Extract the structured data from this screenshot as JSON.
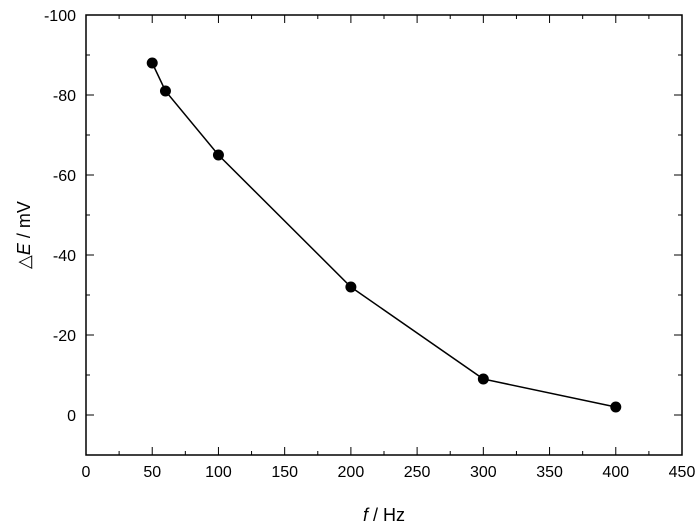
{
  "chart_data": {
    "type": "line",
    "xlabel": {
      "symbol": "f",
      "unit": " / Hz"
    },
    "ylabel": {
      "prefix": "△",
      "symbol": "E",
      "unit": " / mV"
    },
    "xlim": [
      0,
      450
    ],
    "ylim": [
      10,
      -100
    ],
    "y_axis_inverted": true,
    "x_ticks": [
      0,
      50,
      100,
      150,
      200,
      250,
      300,
      350,
      400,
      450
    ],
    "y_ticks": [
      0,
      -20,
      -40,
      -60,
      -80,
      -100
    ],
    "grid": false,
    "series": [
      {
        "x": [
          50,
          60,
          100,
          200,
          300,
          400
        ],
        "y": [
          -88,
          -81,
          -65,
          -32,
          -9,
          -2
        ],
        "marker": "filled-circle",
        "color": "#000000"
      }
    ]
  }
}
